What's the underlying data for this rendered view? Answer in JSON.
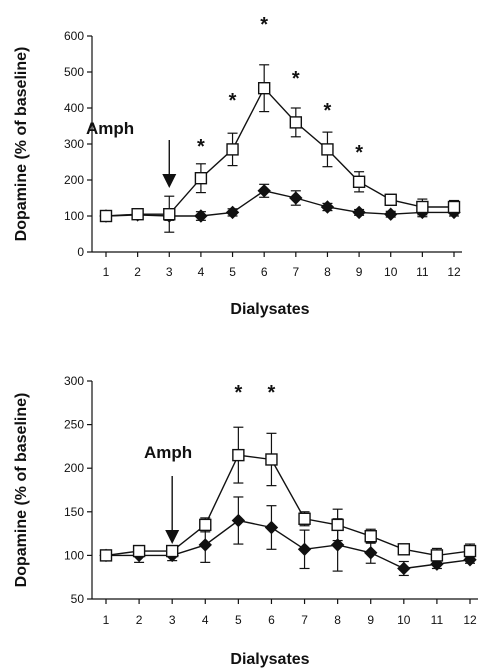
{
  "chart_data": [
    {
      "type": "line",
      "xlabel": "Dialysates",
      "ylabel": "Dopamine (% of baseline)",
      "x": [
        1,
        2,
        3,
        4,
        5,
        6,
        7,
        8,
        9,
        10,
        11,
        12
      ],
      "xticks": [
        "1",
        "2",
        "3",
        "4",
        "5",
        "6",
        "7",
        "8",
        "9",
        "10",
        "11",
        "12"
      ],
      "ylim": [
        0,
        600
      ],
      "yticks": [
        "0",
        "100",
        "200",
        "300",
        "400",
        "500",
        "600"
      ],
      "grid": false,
      "series": [
        {
          "marker": "open-square",
          "values": [
            100,
            105,
            105,
            205,
            285,
            455,
            360,
            285,
            195,
            145,
            125,
            125
          ],
          "errors": [
            8,
            10,
            50,
            40,
            45,
            65,
            40,
            48,
            28,
            15,
            22,
            18
          ]
        },
        {
          "marker": "filled-diamond",
          "values": [
            100,
            103,
            100,
            100,
            110,
            170,
            150,
            125,
            110,
            105,
            110,
            110
          ],
          "errors": [
            8,
            10,
            12,
            12,
            10,
            18,
            20,
            10,
            8,
            8,
            12,
            10
          ]
        }
      ],
      "annotations": {
        "arrow_text": "Amph",
        "arrow_x": 3,
        "significance_symbol": "*",
        "significance_x": [
          4,
          5,
          6,
          7,
          8,
          9
        ]
      }
    },
    {
      "type": "line",
      "xlabel": "Dialysates",
      "ylabel": "Dopamine (% of baseline)",
      "x": [
        1,
        2,
        3,
        4,
        5,
        6,
        7,
        8,
        9,
        10,
        11,
        12
      ],
      "xticks": [
        "1",
        "2",
        "3",
        "4",
        "5",
        "6",
        "7",
        "8",
        "9",
        "10",
        "11",
        "12"
      ],
      "ylim": [
        50,
        300
      ],
      "yticks": [
        "50",
        "100",
        "150",
        "200",
        "250",
        "300"
      ],
      "grid": false,
      "series": [
        {
          "marker": "open-square",
          "values": [
            100,
            105,
            105,
            135,
            215,
            210,
            142,
            135,
            122,
            107,
            100,
            105
          ],
          "errors": [
            4,
            5,
            6,
            8,
            32,
            30,
            8,
            18,
            8,
            6,
            8,
            8
          ]
        },
        {
          "marker": "filled-diamond",
          "values": [
            100,
            100,
            100,
            112,
            140,
            132,
            107,
            112,
            103,
            85,
            90,
            95
          ],
          "errors": [
            4,
            8,
            6,
            20,
            27,
            25,
            22,
            30,
            12,
            8,
            5,
            4
          ]
        }
      ],
      "annotations": {
        "arrow_text": "Amph",
        "arrow_x": 3,
        "significance_symbol": "*",
        "significance_x": [
          5,
          6
        ]
      }
    }
  ]
}
